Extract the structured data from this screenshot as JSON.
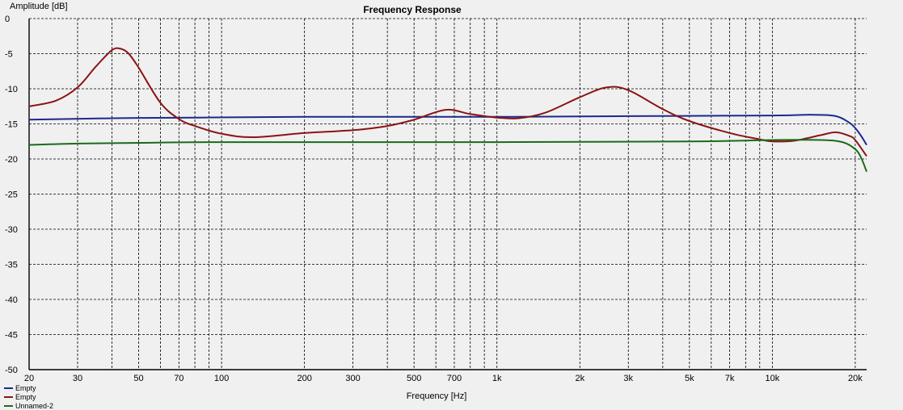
{
  "chart_data": {
    "type": "line",
    "title": "Frequency Response",
    "xlabel": "Frequency [Hz]",
    "ylabel": "Amplitude [dB]",
    "x_scale": "log",
    "xlim": [
      20,
      22000
    ],
    "ylim": [
      -50,
      0
    ],
    "grid": true,
    "legend_position": "bottom-left",
    "x_ticks": [
      20,
      30,
      50,
      70,
      100,
      200,
      300,
      500,
      700,
      1000,
      2000,
      3000,
      5000,
      7000,
      10000,
      20000
    ],
    "x_tick_labels": [
      "20",
      "30",
      "50",
      "70",
      "100",
      "200",
      "300",
      "500",
      "700",
      "1k",
      "2k",
      "3k",
      "5k",
      "7k",
      "10k",
      "20k"
    ],
    "y_ticks": [
      0,
      -5,
      -10,
      -15,
      -20,
      -25,
      -30,
      -35,
      -40,
      -45,
      -50
    ],
    "y_tick_labels": [
      "0",
      "-5",
      "-10",
      "-15",
      "-20",
      "-25",
      "-30",
      "-35",
      "-40",
      "-45",
      "-50"
    ],
    "series": [
      {
        "name": "Empty",
        "color": "#1a2a8c",
        "x": [
          20,
          40,
          80,
          200,
          1000,
          3000,
          10000,
          14000,
          17000,
          19000,
          20000,
          21000,
          22000
        ],
        "y": [
          -14.4,
          -14.2,
          -14.1,
          -14.0,
          -14.0,
          -13.9,
          -13.8,
          -13.7,
          -13.9,
          -14.8,
          -15.6,
          -16.7,
          -18.0
        ]
      },
      {
        "name": "Empty",
        "color": "#8b1414",
        "x": [
          20,
          25,
          30,
          35,
          40,
          43,
          46,
          50,
          60,
          70,
          80,
          100,
          130,
          200,
          300,
          400,
          500,
          650,
          800,
          1000,
          1200,
          1500,
          2000,
          2500,
          3000,
          4000,
          5000,
          7000,
          9000,
          10000,
          12000,
          15000,
          17000,
          19000,
          20000,
          22000
        ],
        "y": [
          -12.5,
          -11.7,
          -9.8,
          -6.8,
          -4.5,
          -4.3,
          -5.0,
          -7.0,
          -12.0,
          -14.3,
          -15.3,
          -16.4,
          -16.9,
          -16.3,
          -15.9,
          -15.3,
          -14.4,
          -13.0,
          -13.6,
          -14.1,
          -14.2,
          -13.4,
          -11.2,
          -9.8,
          -10.2,
          -12.9,
          -14.6,
          -16.3,
          -17.2,
          -17.5,
          -17.4,
          -16.6,
          -16.2,
          -16.7,
          -17.3,
          -19.6
        ]
      },
      {
        "name": "Unnamed-2",
        "color": "#1a6b1a",
        "x": [
          20,
          30,
          50,
          100,
          1000,
          5000,
          10000,
          15000,
          18000,
          20000,
          21000,
          22000
        ],
        "y": [
          -18.0,
          -17.8,
          -17.7,
          -17.6,
          -17.6,
          -17.5,
          -17.3,
          -17.3,
          -17.6,
          -18.6,
          -19.8,
          -21.8
        ]
      }
    ]
  }
}
